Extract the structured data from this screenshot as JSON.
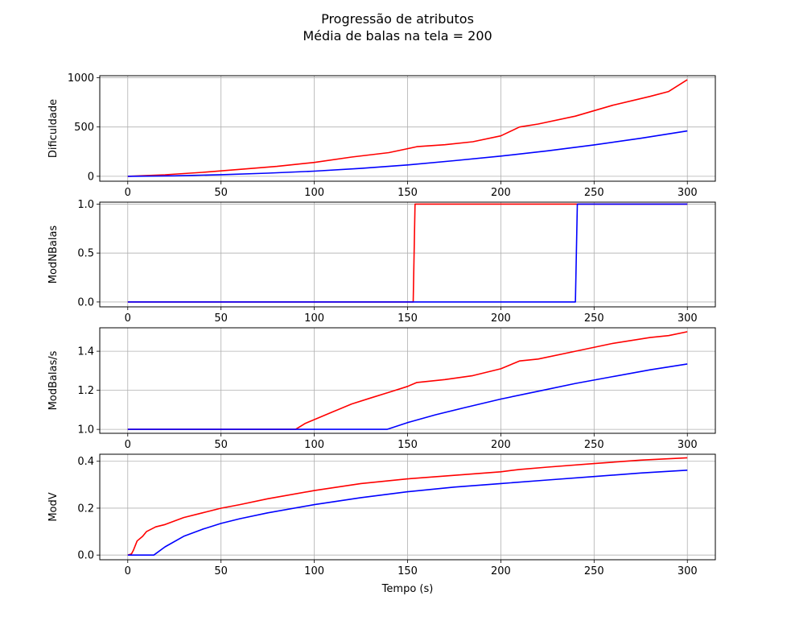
{
  "figure": {
    "title_line1": "Progressão de atributos",
    "title_line2": "Média de balas na tela = 200"
  },
  "chart_data": [
    {
      "type": "line",
      "ylabel": "Dificuldade",
      "xlabel": "",
      "xlim": [
        -15,
        315
      ],
      "ylim": [
        -50,
        1020
      ],
      "xticks": [
        0,
        50,
        100,
        150,
        200,
        250,
        300
      ],
      "yticks": [
        0,
        500,
        1000
      ],
      "grid": true,
      "series": [
        {
          "color": "#ff0000",
          "x": [
            0,
            20,
            40,
            60,
            80,
            100,
            120,
            140,
            150,
            155,
            170,
            185,
            200,
            210,
            220,
            240,
            260,
            280,
            290,
            300
          ],
          "y": [
            0,
            15,
            40,
            70,
            100,
            140,
            195,
            240,
            280,
            300,
            320,
            350,
            410,
            500,
            530,
            610,
            720,
            810,
            860,
            980
          ]
        },
        {
          "color": "#0000ff",
          "x": [
            0,
            25,
            50,
            75,
            100,
            125,
            150,
            175,
            200,
            225,
            250,
            275,
            300
          ],
          "y": [
            0,
            5,
            16,
            32,
            52,
            80,
            115,
            158,
            205,
            258,
            318,
            385,
            460
          ]
        }
      ]
    },
    {
      "type": "line",
      "ylabel": "ModNBalas",
      "xlabel": "",
      "xlim": [
        -15,
        315
      ],
      "ylim": [
        -0.05,
        1.02
      ],
      "xticks": [
        0,
        50,
        100,
        150,
        200,
        250,
        300
      ],
      "yticks": [
        0.0,
        0.5,
        1.0
      ],
      "ytick_labels": [
        "0.0",
        "0.5",
        "1.0"
      ],
      "grid": true,
      "series": [
        {
          "color": "#ff0000",
          "x": [
            0,
            153,
            154,
            300
          ],
          "y": [
            0,
            0,
            1,
            1
          ]
        },
        {
          "color": "#0000ff",
          "x": [
            0,
            240,
            241,
            300
          ],
          "y": [
            0,
            0,
            1,
            1
          ]
        }
      ]
    },
    {
      "type": "line",
      "ylabel": "ModBalas/s",
      "xlabel": "",
      "xlim": [
        -15,
        315
      ],
      "ylim": [
        0.98,
        1.52
      ],
      "xticks": [
        0,
        50,
        100,
        150,
        200,
        250,
        300
      ],
      "yticks": [
        1.0,
        1.2,
        1.4
      ],
      "ytick_labels": [
        "1.0",
        "1.2",
        "1.4"
      ],
      "grid": true,
      "series": [
        {
          "color": "#ff0000",
          "x": [
            0,
            90,
            95,
            100,
            110,
            120,
            130,
            140,
            150,
            155,
            170,
            185,
            200,
            210,
            220,
            240,
            260,
            280,
            290,
            300
          ],
          "y": [
            1.0,
            1.0,
            1.03,
            1.05,
            1.09,
            1.13,
            1.16,
            1.19,
            1.22,
            1.24,
            1.255,
            1.275,
            1.31,
            1.35,
            1.36,
            1.4,
            1.44,
            1.47,
            1.48,
            1.5
          ]
        },
        {
          "color": "#0000ff",
          "x": [
            0,
            139,
            150,
            165,
            180,
            200,
            220,
            240,
            260,
            280,
            300
          ],
          "y": [
            1.0,
            1.0,
            1.035,
            1.075,
            1.11,
            1.155,
            1.195,
            1.235,
            1.27,
            1.305,
            1.335
          ]
        }
      ]
    },
    {
      "type": "line",
      "ylabel": "ModV",
      "xlabel": "Tempo (s)",
      "xlim": [
        -15,
        315
      ],
      "ylim": [
        -0.02,
        0.43
      ],
      "xticks": [
        0,
        50,
        100,
        150,
        200,
        250,
        300
      ],
      "yticks": [
        0.0,
        0.2,
        0.4
      ],
      "ytick_labels": [
        "0.0",
        "0.2",
        "0.4"
      ],
      "grid": true,
      "series": [
        {
          "color": "#ff0000",
          "x": [
            0,
            2,
            3,
            5,
            8,
            10,
            15,
            20,
            30,
            40,
            50,
            60,
            75,
            100,
            125,
            150,
            175,
            200,
            210,
            225,
            250,
            275,
            300
          ],
          "y": [
            0,
            0.005,
            0.02,
            0.06,
            0.08,
            0.1,
            0.12,
            0.13,
            0.16,
            0.18,
            0.2,
            0.215,
            0.24,
            0.275,
            0.305,
            0.325,
            0.34,
            0.355,
            0.365,
            0.375,
            0.39,
            0.405,
            0.415
          ]
        },
        {
          "color": "#0000ff",
          "x": [
            0,
            14,
            20,
            30,
            40,
            50,
            60,
            75,
            100,
            125,
            150,
            175,
            200,
            225,
            250,
            275,
            300
          ],
          "y": [
            0,
            0,
            0.035,
            0.08,
            0.11,
            0.135,
            0.155,
            0.18,
            0.215,
            0.245,
            0.27,
            0.29,
            0.305,
            0.32,
            0.335,
            0.35,
            0.362
          ]
        }
      ]
    }
  ]
}
